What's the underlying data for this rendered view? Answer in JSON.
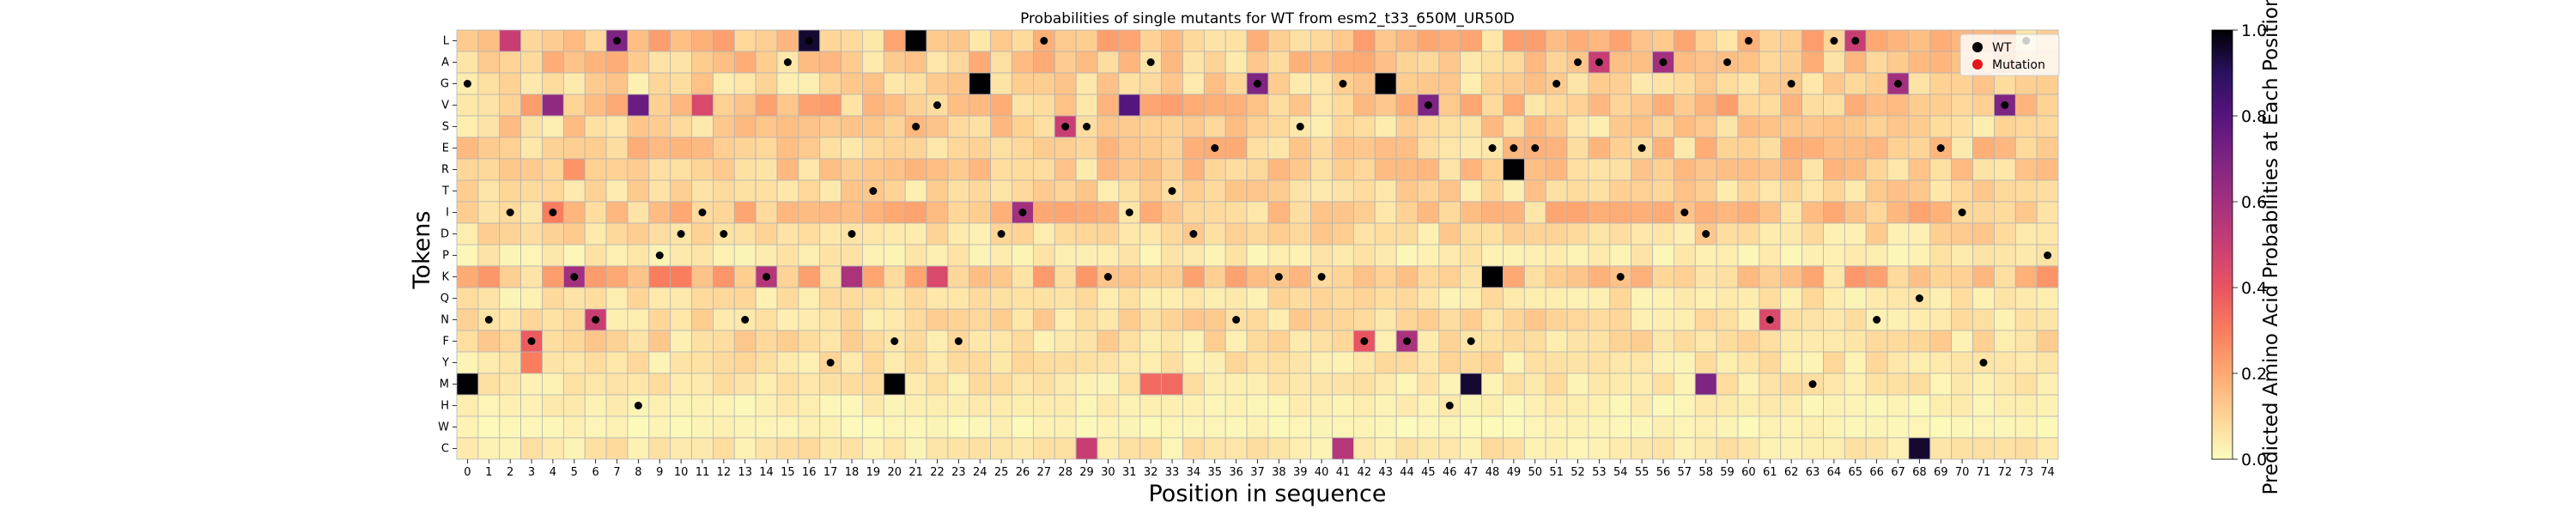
{
  "chart_data": {
    "type": "heatmap",
    "title": "Probabilities of single mutants for WT from esm2_t33_650M_UR50D",
    "xlabel": "Position in sequence",
    "ylabel": "Tokens",
    "x_ticks": [
      0,
      1,
      2,
      3,
      4,
      5,
      6,
      7,
      8,
      9,
      10,
      11,
      12,
      13,
      14,
      15,
      16,
      17,
      18,
      19,
      20,
      21,
      22,
      23,
      24,
      25,
      26,
      27,
      28,
      29,
      30,
      31,
      32,
      33,
      34,
      35,
      36,
      37,
      38,
      39,
      40,
      41,
      42,
      43,
      44,
      45,
      46,
      47,
      48,
      49,
      50,
      51,
      52,
      53,
      54,
      55,
      56,
      57,
      58,
      59,
      60,
      61,
      62,
      63,
      64,
      65,
      66,
      67,
      68,
      69,
      70,
      71,
      72,
      73,
      74
    ],
    "tokens": [
      "L",
      "A",
      "G",
      "V",
      "S",
      "E",
      "R",
      "T",
      "I",
      "D",
      "P",
      "K",
      "Q",
      "N",
      "F",
      "Y",
      "M",
      "H",
      "W",
      "C"
    ],
    "colorbar": {
      "label": "Predicted Amino Acid Probabilities at Each Position",
      "colormap": "magma_r",
      "range": [
        0.0,
        1.0
      ],
      "ticks": [
        "0.0",
        "0.2",
        "0.4",
        "0.6",
        "0.8",
        "1.0"
      ]
    },
    "legend": {
      "placement": "top-right",
      "entries": [
        {
          "label": "WT",
          "color": "#000000"
        },
        {
          "label": "Mutation",
          "color": "#e8141c"
        }
      ]
    },
    "wildtype": [
      {
        "x": 0,
        "token": "G"
      },
      {
        "x": 1,
        "token": "N"
      },
      {
        "x": 2,
        "token": "I"
      },
      {
        "x": 3,
        "token": "F"
      },
      {
        "x": 4,
        "token": "I"
      },
      {
        "x": 5,
        "token": "K"
      },
      {
        "x": 6,
        "token": "N"
      },
      {
        "x": 7,
        "token": "L"
      },
      {
        "x": 8,
        "token": "H"
      },
      {
        "x": 9,
        "token": "P"
      },
      {
        "x": 10,
        "token": "D"
      },
      {
        "x": 11,
        "token": "I"
      },
      {
        "x": 12,
        "token": "D"
      },
      {
        "x": 13,
        "token": "N"
      },
      {
        "x": 14,
        "token": "K"
      },
      {
        "x": 15,
        "token": "A"
      },
      {
        "x": 16,
        "token": "L"
      },
      {
        "x": 17,
        "token": "Y"
      },
      {
        "x": 18,
        "token": "D"
      },
      {
        "x": 19,
        "token": "T"
      },
      {
        "x": 20,
        "token": "F"
      },
      {
        "x": 21,
        "token": "S"
      },
      {
        "x": 22,
        "token": "V"
      },
      {
        "x": 23,
        "token": "F"
      },
      {
        "x": 24,
        "token": "G"
      },
      {
        "x": 25,
        "token": "D"
      },
      {
        "x": 26,
        "token": "I"
      },
      {
        "x": 27,
        "token": "L"
      },
      {
        "x": 28,
        "token": "S"
      },
      {
        "x": 29,
        "token": "S"
      },
      {
        "x": 30,
        "token": "K"
      },
      {
        "x": 31,
        "token": "I"
      },
      {
        "x": 32,
        "token": "A"
      },
      {
        "x": 33,
        "token": "T"
      },
      {
        "x": 34,
        "token": "D"
      },
      {
        "x": 35,
        "token": "E"
      },
      {
        "x": 36,
        "token": "N"
      },
      {
        "x": 37,
        "token": "G"
      },
      {
        "x": 38,
        "token": "K"
      },
      {
        "x": 39,
        "token": "S"
      },
      {
        "x": 40,
        "token": "K"
      },
      {
        "x": 41,
        "token": "G"
      },
      {
        "x": 42,
        "token": "F"
      },
      {
        "x": 43,
        "token": "G"
      },
      {
        "x": 44,
        "token": "F"
      },
      {
        "x": 45,
        "token": "V"
      },
      {
        "x": 46,
        "token": "H"
      },
      {
        "x": 47,
        "token": "F"
      },
      {
        "x": 48,
        "token": "E"
      },
      {
        "x": 49,
        "token": "E"
      },
      {
        "x": 50,
        "token": "E"
      },
      {
        "x": 51,
        "token": "G"
      },
      {
        "x": 52,
        "token": "A"
      },
      {
        "x": 53,
        "token": "A"
      },
      {
        "x": 54,
        "token": "K"
      },
      {
        "x": 55,
        "token": "E"
      },
      {
        "x": 56,
        "token": "A"
      },
      {
        "x": 57,
        "token": "I"
      },
      {
        "x": 58,
        "token": "D"
      },
      {
        "x": 59,
        "token": "A"
      },
      {
        "x": 60,
        "token": "L"
      },
      {
        "x": 61,
        "token": "N"
      },
      {
        "x": 62,
        "token": "G"
      },
      {
        "x": 63,
        "token": "M"
      },
      {
        "x": 64,
        "token": "L"
      },
      {
        "x": 65,
        "token": "L"
      },
      {
        "x": 66,
        "token": "N"
      },
      {
        "x": 67,
        "token": "G"
      },
      {
        "x": 68,
        "token": "Q"
      },
      {
        "x": 69,
        "token": "E"
      },
      {
        "x": 70,
        "token": "I"
      },
      {
        "x": 71,
        "token": "Y"
      },
      {
        "x": 72,
        "token": "V"
      },
      {
        "x": 73,
        "token": "L"
      },
      {
        "x": 74,
        "token": "P"
      }
    ],
    "mutations": [],
    "notable_cells": [
      {
        "x": 0,
        "token": "M",
        "value": 1.0
      },
      {
        "x": 2,
        "token": "L",
        "value": 0.5
      },
      {
        "x": 3,
        "token": "F",
        "value": 0.38
      },
      {
        "x": 3,
        "token": "Y",
        "value": 0.3
      },
      {
        "x": 4,
        "token": "V",
        "value": 0.65
      },
      {
        "x": 4,
        "token": "I",
        "value": 0.3
      },
      {
        "x": 5,
        "token": "K",
        "value": 0.6
      },
      {
        "x": 5,
        "token": "R",
        "value": 0.25
      },
      {
        "x": 6,
        "token": "N",
        "value": 0.5
      },
      {
        "x": 7,
        "token": "L",
        "value": 0.7
      },
      {
        "x": 8,
        "token": "V",
        "value": 0.75
      },
      {
        "x": 9,
        "token": "K",
        "value": 0.3
      },
      {
        "x": 10,
        "token": "K",
        "value": 0.3
      },
      {
        "x": 11,
        "token": "V",
        "value": 0.45
      },
      {
        "x": 14,
        "token": "K",
        "value": 0.55
      },
      {
        "x": 16,
        "token": "L",
        "value": 0.95
      },
      {
        "x": 18,
        "token": "K",
        "value": 0.58
      },
      {
        "x": 20,
        "token": "M",
        "value": 1.0
      },
      {
        "x": 21,
        "token": "L",
        "value": 1.0
      },
      {
        "x": 22,
        "token": "K",
        "value": 0.45
      },
      {
        "x": 24,
        "token": "G",
        "value": 1.0
      },
      {
        "x": 26,
        "token": "I",
        "value": 0.6
      },
      {
        "x": 28,
        "token": "S",
        "value": 0.5
      },
      {
        "x": 29,
        "token": "C",
        "value": 0.5
      },
      {
        "x": 31,
        "token": "V",
        "value": 0.8
      },
      {
        "x": 32,
        "token": "M",
        "value": 0.35
      },
      {
        "x": 33,
        "token": "M",
        "value": 0.35
      },
      {
        "x": 37,
        "token": "G",
        "value": 0.7
      },
      {
        "x": 41,
        "token": "C",
        "value": 0.55
      },
      {
        "x": 42,
        "token": "F",
        "value": 0.4
      },
      {
        "x": 43,
        "token": "G",
        "value": 1.0
      },
      {
        "x": 44,
        "token": "F",
        "value": 0.58
      },
      {
        "x": 45,
        "token": "V",
        "value": 0.7
      },
      {
        "x": 47,
        "token": "M",
        "value": 0.95
      },
      {
        "x": 48,
        "token": "K",
        "value": 1.0
      },
      {
        "x": 49,
        "token": "R",
        "value": 1.0
      },
      {
        "x": 53,
        "token": "A",
        "value": 0.5
      },
      {
        "x": 56,
        "token": "A",
        "value": 0.6
      },
      {
        "x": 58,
        "token": "M",
        "value": 0.7
      },
      {
        "x": 61,
        "token": "N",
        "value": 0.45
      },
      {
        "x": 65,
        "token": "L",
        "value": 0.5
      },
      {
        "x": 67,
        "token": "G",
        "value": 0.6
      },
      {
        "x": 68,
        "token": "C",
        "value": 0.95
      },
      {
        "x": 72,
        "token": "V",
        "value": 0.7
      }
    ]
  }
}
